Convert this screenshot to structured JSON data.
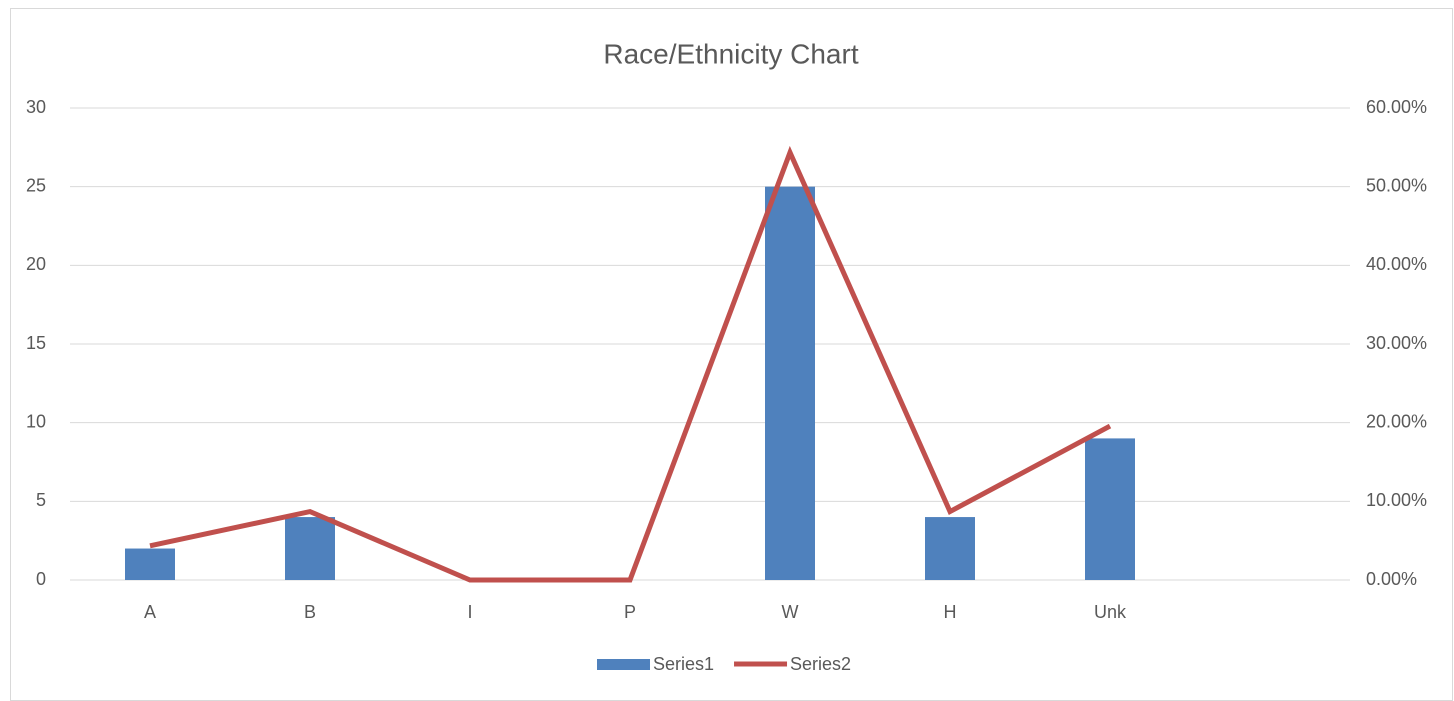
{
  "chart_data": {
    "type": "bar",
    "title": "Race/Ethnicity Chart",
    "categories": [
      "A",
      "B",
      "I",
      "P",
      "W",
      "H",
      "Unk",
      null
    ],
    "series": [
      {
        "name": "Series1",
        "type": "bar",
        "color": "#4f81bd",
        "values": [
          2,
          4,
          0,
          0,
          25,
          4,
          9,
          null
        ]
      },
      {
        "name": "Series2",
        "type": "line",
        "axis": "y2",
        "color": "#c0504d",
        "values": [
          4.35,
          8.7,
          0,
          0,
          54.35,
          8.7,
          19.57,
          null
        ]
      }
    ],
    "ylim": [
      0,
      30
    ],
    "yticks": [
      0,
      5,
      10,
      15,
      20,
      25,
      30
    ],
    "y2lim": [
      0,
      60
    ],
    "y2ticks": [
      {
        "value": 0,
        "label": "0.00%"
      },
      {
        "value": 10,
        "label": "10.00%"
      },
      {
        "value": 20,
        "label": "20.00%"
      },
      {
        "value": 30,
        "label": "30.00%"
      },
      {
        "value": 40,
        "label": "40.00%"
      },
      {
        "value": 50,
        "label": "50.00%"
      },
      {
        "value": 60,
        "label": "60.00%"
      }
    ],
    "grid": true,
    "legend": "bottom"
  }
}
